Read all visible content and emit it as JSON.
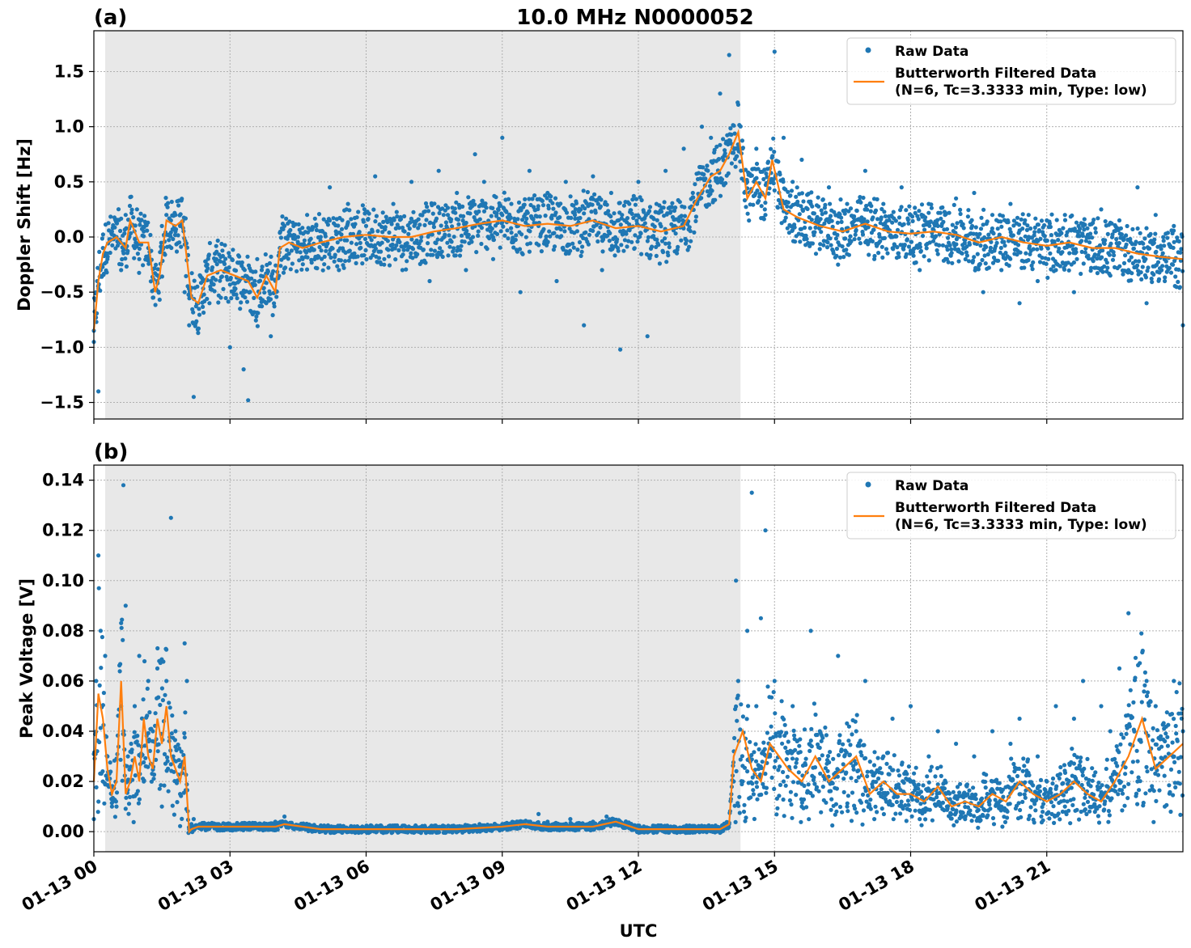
{
  "title": "10.0 MHz N0000052",
  "xlabel": "UTC",
  "x_tick_labels": [
    "01-13 00",
    "01-13 03",
    "01-13 06",
    "01-13 09",
    "01-13 12",
    "01-13 15",
    "01-13 18",
    "01-13 21"
  ],
  "colors": {
    "raw": "#1f77b4",
    "filtered": "#ff7f0e",
    "shade": "#e8e8e8",
    "grid": "#b0b0b0"
  },
  "legend": {
    "raw_label": "Raw Data",
    "filtered_label_line1": "Butterworth Filtered Data",
    "filtered_label_line2": "(N=6, Tc=3.3333 min, Type: low)"
  },
  "chart_data": [
    {
      "type": "scatter",
      "panel_label": "(a)",
      "ylabel": "Doppler Shift [Hz]",
      "x_unit": "hours UTC on 01-13",
      "xlim": [
        0,
        24
      ],
      "ylim": [
        -1.65,
        1.87
      ],
      "y_ticks": [
        -1.5,
        -1.0,
        -0.5,
        0.0,
        0.5,
        1.0,
        1.5
      ],
      "y_tick_labels": [
        "−1.5",
        "−1.0",
        "−0.5",
        "0.0",
        "0.5",
        "1.0",
        "1.5"
      ],
      "shaded_span": [
        0.25,
        14.25
      ],
      "grid": true,
      "legend_position": "top-right",
      "series": [
        {
          "name": "Butterworth Filtered Data",
          "kind": "line",
          "x": [
            0.0,
            0.1,
            0.2,
            0.3,
            0.5,
            0.7,
            0.8,
            1.0,
            1.2,
            1.35,
            1.45,
            1.6,
            1.8,
            1.95,
            2.05,
            2.15,
            2.3,
            2.5,
            2.8,
            3.1,
            3.4,
            3.6,
            3.8,
            4.0,
            4.1,
            4.3,
            4.6,
            5.0,
            5.5,
            6.0,
            6.5,
            7.0,
            7.5,
            8.0,
            8.5,
            9.0,
            9.5,
            10.0,
            10.5,
            11.0,
            11.5,
            12.0,
            12.5,
            13.0,
            13.3,
            13.6,
            13.8,
            14.0,
            14.2,
            14.4,
            14.6,
            14.8,
            14.95,
            15.2,
            15.5,
            16.0,
            16.5,
            17.0,
            17.5,
            18.0,
            18.5,
            19.0,
            19.5,
            20.0,
            20.5,
            21.0,
            21.5,
            22.0,
            22.5,
            23.0,
            23.5,
            24.0
          ],
          "y": [
            -0.85,
            -0.4,
            -0.15,
            -0.05,
            0.0,
            -0.1,
            0.15,
            -0.05,
            -0.05,
            -0.5,
            -0.35,
            0.15,
            0.1,
            0.15,
            -0.2,
            -0.55,
            -0.6,
            -0.35,
            -0.3,
            -0.35,
            -0.4,
            -0.55,
            -0.35,
            -0.5,
            -0.1,
            -0.05,
            -0.1,
            -0.05,
            0.0,
            0.02,
            0.0,
            0.0,
            0.05,
            0.08,
            0.12,
            0.15,
            0.1,
            0.12,
            0.1,
            0.15,
            0.08,
            0.1,
            0.05,
            0.1,
            0.35,
            0.55,
            0.6,
            0.75,
            0.95,
            0.35,
            0.5,
            0.35,
            0.7,
            0.25,
            0.18,
            0.1,
            0.05,
            0.12,
            0.05,
            0.03,
            0.05,
            0.02,
            -0.05,
            0.0,
            -0.05,
            -0.08,
            -0.05,
            -0.1,
            -0.1,
            -0.15,
            -0.18,
            -0.2
          ]
        }
      ],
      "raw_data": {
        "name": "Raw Data",
        "kind": "points",
        "x": [
          0.0,
          0.05,
          0.1,
          0.15,
          0.2,
          0.3,
          0.4,
          0.5,
          0.6,
          0.7,
          0.8,
          0.9,
          1.0,
          1.1,
          1.2,
          1.3,
          1.4,
          1.5,
          1.6,
          1.7,
          1.8,
          1.9,
          2.0,
          2.1,
          2.2,
          2.3,
          2.4,
          2.5,
          2.6,
          2.7,
          2.8,
          2.9,
          3.0,
          3.1,
          3.2,
          3.3,
          3.4,
          3.5,
          3.6,
          3.7,
          3.8,
          3.9,
          4.0,
          4.1,
          4.2,
          4.3,
          4.4,
          4.5,
          4.6,
          4.7,
          4.8,
          4.9,
          5.0,
          5.2,
          5.4,
          5.6,
          5.8,
          6.0,
          6.2,
          6.4,
          6.6,
          6.8,
          7.0,
          7.2,
          7.4,
          7.6,
          7.8,
          8.0,
          8.2,
          8.4,
          8.6,
          8.8,
          9.0,
          9.2,
          9.4,
          9.6,
          9.8,
          10.0,
          10.2,
          10.4,
          10.6,
          10.8,
          11.0,
          11.2,
          11.4,
          11.6,
          11.8,
          12.0,
          12.2,
          12.4,
          12.6,
          12.8,
          13.0,
          13.2,
          13.4,
          13.6,
          13.8,
          14.0,
          14.2,
          14.4,
          14.6,
          14.8,
          15.0,
          15.2,
          15.4,
          15.6,
          15.8,
          16.0,
          16.2,
          16.4,
          16.6,
          16.8,
          17.0,
          17.2,
          17.4,
          17.6,
          17.8,
          18.0,
          18.2,
          18.4,
          18.6,
          18.8,
          19.0,
          19.2,
          19.4,
          19.6,
          19.8,
          20.0,
          20.2,
          20.4,
          20.6,
          20.8,
          21.0,
          21.2,
          21.4,
          21.6,
          21.8,
          22.0,
          22.2,
          22.4,
          22.6,
          22.8,
          23.0,
          23.2,
          23.4,
          23.6,
          23.8,
          24.0
        ],
        "y": [
          -0.85,
          -0.5,
          -1.4,
          -0.3,
          -0.1,
          -0.2,
          0.05,
          0.0,
          -0.3,
          0.2,
          0.1,
          -0.1,
          -0.2,
          0.05,
          -0.1,
          -0.55,
          -0.4,
          0.1,
          0.2,
          0.15,
          0.2,
          0.1,
          -0.5,
          -0.8,
          -1.45,
          -0.6,
          -0.4,
          -0.25,
          -0.3,
          -0.2,
          -0.55,
          -0.3,
          -1.0,
          -0.3,
          -0.4,
          -1.2,
          -1.48,
          -0.7,
          -0.2,
          -0.3,
          -0.6,
          -0.9,
          -0.5,
          -0.1,
          0.1,
          -0.15,
          0.1,
          0.0,
          -0.2,
          0.2,
          -0.1,
          0.1,
          0.0,
          0.45,
          -0.3,
          0.3,
          0.0,
          0.1,
          0.55,
          -0.2,
          0.3,
          -0.3,
          0.5,
          0.2,
          -0.4,
          0.6,
          0.2,
          0.4,
          -0.3,
          0.75,
          0.5,
          -0.2,
          0.9,
          0.3,
          -0.5,
          0.6,
          0.1,
          0.4,
          -0.4,
          0.5,
          0.2,
          -0.8,
          0.55,
          -0.3,
          0.4,
          -1.02,
          0.3,
          0.5,
          -0.9,
          0.3,
          0.6,
          0.1,
          0.8,
          0.4,
          1.0,
          0.9,
          1.3,
          1.65,
          1.2,
          0.5,
          0.8,
          0.2,
          1.68,
          0.9,
          0.5,
          0.7,
          0.3,
          0.1,
          0.45,
          -0.25,
          0.3,
          0.1,
          0.6,
          -0.2,
          0.3,
          0.0,
          0.45,
          0.2,
          -0.3,
          0.3,
          0.1,
          -0.2,
          0.35,
          -0.1,
          0.4,
          -0.5,
          0.2,
          -0.3,
          0.3,
          -0.6,
          0.2,
          -0.4,
          0.15,
          -0.3,
          0.2,
          -0.5,
          0.1,
          -0.2,
          0.25,
          -0.35,
          0.15,
          -0.3,
          0.45,
          -0.6,
          0.2,
          -0.4,
          0.1,
          -0.8
        ]
      }
    },
    {
      "type": "scatter",
      "panel_label": "(b)",
      "ylabel": "Peak Voltage [V]",
      "x_unit": "hours UTC on 01-13",
      "xlim": [
        0,
        24
      ],
      "ylim": [
        -0.008,
        0.146
      ],
      "y_ticks": [
        0.0,
        0.02,
        0.04,
        0.06,
        0.08,
        0.1,
        0.12,
        0.14
      ],
      "y_tick_labels": [
        "0.00",
        "0.02",
        "0.04",
        "0.06",
        "0.08",
        "0.10",
        "0.12",
        "0.14"
      ],
      "shaded_span": [
        0.25,
        14.25
      ],
      "grid": true,
      "legend_position": "top-right",
      "series": [
        {
          "name": "Butterworth Filtered Data",
          "kind": "line",
          "x": [
            0.0,
            0.1,
            0.2,
            0.3,
            0.4,
            0.5,
            0.6,
            0.7,
            0.8,
            0.9,
            1.0,
            1.1,
            1.2,
            1.3,
            1.4,
            1.5,
            1.6,
            1.7,
            1.8,
            1.9,
            2.0,
            2.1,
            2.15,
            2.3,
            3.0,
            4.0,
            4.2,
            5.0,
            6.0,
            7.0,
            8.0,
            9.0,
            9.5,
            10.0,
            11.0,
            11.5,
            12.0,
            13.0,
            13.8,
            14.0,
            14.1,
            14.3,
            14.5,
            14.7,
            14.9,
            15.1,
            15.3,
            15.6,
            15.9,
            16.2,
            16.5,
            16.8,
            17.1,
            17.4,
            17.7,
            18.0,
            18.3,
            18.6,
            18.9,
            19.2,
            19.5,
            19.8,
            20.1,
            20.4,
            20.7,
            21.0,
            21.3,
            21.6,
            21.9,
            22.2,
            22.5,
            22.8,
            23.1,
            23.4,
            23.7,
            24.0
          ],
          "y": [
            0.02,
            0.055,
            0.045,
            0.025,
            0.015,
            0.02,
            0.06,
            0.015,
            0.02,
            0.03,
            0.02,
            0.045,
            0.03,
            0.025,
            0.045,
            0.035,
            0.05,
            0.03,
            0.025,
            0.02,
            0.03,
            0.0,
            0.001,
            0.002,
            0.002,
            0.002,
            0.003,
            0.001,
            0.001,
            0.001,
            0.001,
            0.002,
            0.003,
            0.002,
            0.002,
            0.004,
            0.001,
            0.001,
            0.001,
            0.003,
            0.03,
            0.04,
            0.025,
            0.02,
            0.035,
            0.03,
            0.025,
            0.02,
            0.03,
            0.02,
            0.025,
            0.03,
            0.015,
            0.02,
            0.015,
            0.015,
            0.012,
            0.018,
            0.01,
            0.012,
            0.01,
            0.015,
            0.012,
            0.02,
            0.015,
            0.012,
            0.015,
            0.02,
            0.015,
            0.012,
            0.02,
            0.03,
            0.045,
            0.025,
            0.03,
            0.035
          ]
        }
      ],
      "raw_data": {
        "name": "Raw Data",
        "kind": "points",
        "x": [
          0.0,
          0.05,
          0.1,
          0.15,
          0.2,
          0.25,
          0.3,
          0.4,
          0.5,
          0.6,
          0.65,
          0.7,
          0.75,
          0.8,
          0.9,
          1.0,
          1.1,
          1.2,
          1.3,
          1.4,
          1.5,
          1.6,
          1.7,
          1.75,
          1.8,
          1.9,
          2.0,
          2.05,
          2.1,
          2.15,
          2.2,
          2.5,
          3.0,
          3.5,
          4.0,
          4.2,
          4.5,
          5.0,
          5.5,
          6.0,
          6.5,
          7.0,
          7.5,
          8.0,
          8.5,
          9.0,
          9.5,
          9.8,
          10.0,
          10.5,
          11.0,
          11.3,
          11.5,
          12.0,
          12.5,
          13.0,
          13.5,
          14.0,
          14.1,
          14.15,
          14.2,
          14.3,
          14.4,
          14.5,
          14.6,
          14.7,
          14.8,
          14.9,
          15.0,
          15.2,
          15.4,
          15.6,
          15.8,
          16.0,
          16.2,
          16.4,
          16.6,
          16.8,
          17.0,
          17.2,
          17.4,
          17.6,
          17.8,
          18.0,
          18.2,
          18.4,
          18.6,
          18.8,
          19.0,
          19.2,
          19.4,
          19.6,
          19.8,
          20.0,
          20.2,
          20.4,
          20.6,
          20.8,
          21.0,
          21.2,
          21.4,
          21.6,
          21.8,
          22.0,
          22.2,
          22.4,
          22.6,
          22.8,
          23.0,
          23.2,
          23.4,
          23.6,
          23.8,
          24.0
        ],
        "y": [
          0.005,
          0.06,
          0.11,
          0.08,
          0.02,
          0.07,
          0.03,
          0.01,
          0.01,
          0.05,
          0.138,
          0.09,
          0.03,
          0.02,
          0.05,
          0.07,
          0.02,
          0.06,
          0.04,
          0.065,
          0.01,
          0.06,
          0.125,
          0.03,
          0.04,
          0.015,
          0.075,
          0.06,
          0.001,
          0.003,
          0.005,
          0.002,
          0.003,
          0.002,
          0.004,
          0.006,
          0.002,
          0.001,
          0.002,
          0.001,
          0.002,
          0.001,
          0.002,
          0.002,
          0.003,
          0.003,
          0.004,
          0.007,
          0.004,
          0.005,
          0.004,
          0.006,
          0.004,
          0.002,
          0.002,
          0.002,
          0.002,
          0.003,
          0.02,
          0.1,
          0.06,
          0.02,
          0.08,
          0.135,
          0.05,
          0.085,
          0.12,
          0.03,
          0.06,
          0.02,
          0.05,
          0.01,
          0.08,
          0.04,
          0.02,
          0.07,
          0.01,
          0.04,
          0.06,
          0.005,
          0.03,
          0.045,
          0.01,
          0.05,
          0.005,
          0.03,
          0.04,
          0.01,
          0.035,
          0.005,
          0.03,
          0.02,
          0.04,
          0.01,
          0.035,
          0.045,
          0.005,
          0.03,
          0.02,
          0.05,
          0.01,
          0.045,
          0.06,
          0.015,
          0.05,
          0.04,
          0.065,
          0.087,
          0.02,
          0.06,
          0.05,
          0.01,
          0.06,
          0.04
        ]
      }
    }
  ]
}
